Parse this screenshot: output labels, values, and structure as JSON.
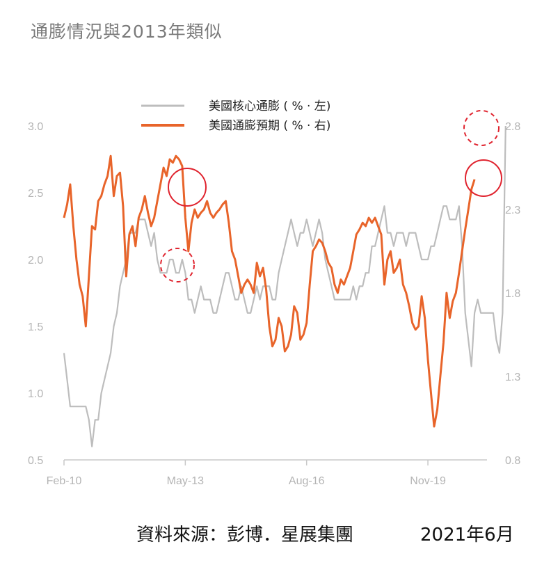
{
  "title": "通膨情況與2013年類似",
  "source": "資料來源：彭博．星展集團",
  "date": "2021年6月",
  "chart_data": {
    "type": "line",
    "x_ticks": [
      "Feb-10",
      "May-13",
      "Aug-16",
      "Nov-19"
    ],
    "x_range": [
      "Feb-10",
      "Jun-21"
    ],
    "y_left": {
      "ticks": [
        "3.0",
        "2.5",
        "2.0",
        "1.5",
        "1.0",
        "0.5"
      ],
      "lim": [
        0.5,
        3.0
      ]
    },
    "y_right": {
      "ticks": [
        "2.8",
        "2.3",
        "1.8",
        "1.3",
        "0.8"
      ],
      "lim": [
        0.8,
        2.8
      ]
    },
    "grid": false,
    "legend_position": "top-center",
    "series": [
      {
        "name": "美國核心通膨 ( % · 左)",
        "axis": "left",
        "color": "#bdbdbd",
        "x_start": "2010-02",
        "values": [
          1.3,
          1.1,
          0.9,
          0.9,
          0.9,
          0.9,
          0.9,
          0.9,
          0.8,
          0.6,
          0.8,
          0.8,
          1.0,
          1.1,
          1.2,
          1.3,
          1.5,
          1.6,
          1.8,
          1.9,
          2.0,
          2.2,
          2.2,
          2.2,
          2.3,
          2.3,
          2.3,
          2.2,
          2.1,
          2.2,
          2.0,
          1.9,
          1.9,
          1.9,
          2.0,
          2.0,
          1.9,
          1.9,
          2.0,
          1.9,
          1.7,
          1.7,
          1.6,
          1.7,
          1.8,
          1.7,
          1.7,
          1.7,
          1.6,
          1.6,
          1.7,
          1.8,
          1.9,
          1.9,
          1.8,
          1.7,
          1.7,
          1.8,
          1.7,
          1.6,
          1.6,
          1.7,
          1.8,
          1.7,
          1.8,
          1.8,
          1.8,
          1.7,
          1.7,
          1.9,
          2.0,
          2.1,
          2.2,
          2.3,
          2.2,
          2.1,
          2.2,
          2.2,
          2.3,
          2.2,
          2.1,
          2.2,
          2.3,
          2.2,
          2.0,
          1.9,
          1.8,
          1.7,
          1.7,
          1.7,
          1.7,
          1.7,
          1.7,
          1.8,
          1.7,
          1.8,
          1.8,
          1.9,
          1.9,
          2.1,
          2.1,
          2.2,
          2.3,
          2.4,
          2.2,
          2.2,
          2.1,
          2.2,
          2.2,
          2.2,
          2.1,
          2.2,
          2.2,
          2.2,
          2.1,
          2.0,
          2.0,
          2.0,
          2.1,
          2.1,
          2.2,
          2.3,
          2.4,
          2.4,
          2.3,
          2.3,
          2.3,
          2.4,
          2.1,
          1.6,
          1.4,
          1.2,
          1.6,
          1.7,
          1.6,
          1.6,
          1.6,
          1.6,
          1.6,
          1.4,
          1.3,
          1.6,
          3.0
        ]
      },
      {
        "name": "美國通膨預期 ( % · 右)",
        "axis": "right",
        "color": "#e8642a",
        "x_start": "2010-02",
        "values": [
          2.25,
          2.33,
          2.45,
          2.2,
          2.0,
          1.85,
          1.78,
          1.6,
          1.9,
          2.2,
          2.18,
          2.35,
          2.38,
          2.45,
          2.5,
          2.62,
          2.38,
          2.5,
          2.52,
          2.32,
          1.9,
          2.15,
          2.2,
          2.08,
          2.25,
          2.3,
          2.38,
          2.28,
          2.2,
          2.25,
          2.35,
          2.45,
          2.55,
          2.5,
          2.6,
          2.58,
          2.62,
          2.6,
          2.56,
          2.25,
          2.05,
          2.22,
          2.3,
          2.25,
          2.28,
          2.3,
          2.35,
          2.28,
          2.25,
          2.28,
          2.3,
          2.33,
          2.35,
          2.22,
          2.05,
          2.0,
          1.9,
          1.8,
          1.85,
          1.88,
          1.85,
          1.8,
          1.98,
          1.9,
          1.95,
          1.82,
          1.6,
          1.48,
          1.52,
          1.65,
          1.6,
          1.45,
          1.48,
          1.55,
          1.72,
          1.68,
          1.52,
          1.55,
          1.62,
          1.85,
          2.05,
          2.08,
          2.12,
          2.1,
          2.05,
          1.98,
          1.95,
          1.85,
          1.8,
          1.88,
          1.85,
          1.9,
          1.95,
          2.05,
          2.15,
          2.18,
          2.22,
          2.2,
          2.25,
          2.22,
          2.25,
          2.2,
          2.15,
          1.85,
          2.0,
          2.05,
          1.92,
          1.95,
          2.0,
          1.85,
          1.8,
          1.72,
          1.62,
          1.58,
          1.6,
          1.78,
          1.65,
          1.4,
          1.2,
          1.0,
          1.1,
          1.3,
          1.5,
          1.8,
          1.65,
          1.75,
          1.8,
          1.92,
          2.05,
          2.18,
          2.3,
          2.42,
          2.48
        ]
      }
    ]
  },
  "annotations": [
    {
      "name": "solid-circle-2013",
      "style": "solid"
    },
    {
      "name": "dashed-circle-2013",
      "style": "dashed"
    },
    {
      "name": "solid-circle-2021",
      "style": "solid"
    },
    {
      "name": "dashed-circle-2021",
      "style": "dashed"
    }
  ]
}
